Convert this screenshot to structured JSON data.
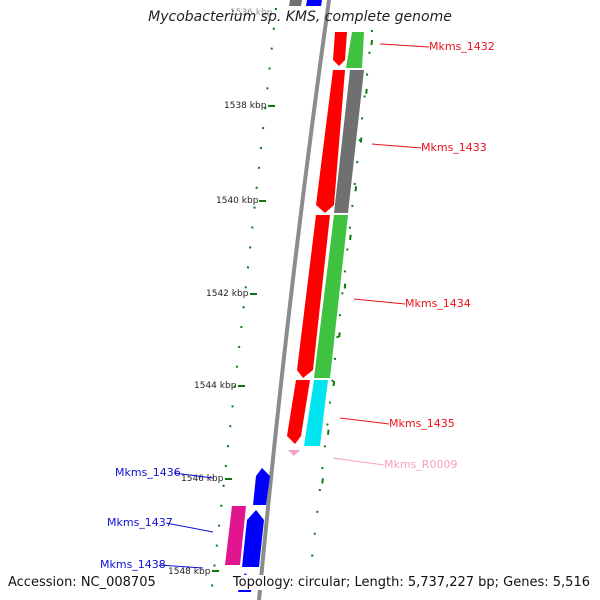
{
  "title": "Mycobacterium sp. KMS, complete genome",
  "footer": {
    "accession": "Accession: NC_008705",
    "topology": "Topology: circular; Length: 5,737,227 bp; Genes: 5,516"
  },
  "ticks": [
    {
      "label": "1536 kbp"
    },
    {
      "label": "1538 kbp"
    },
    {
      "label": "1540 kbp"
    },
    {
      "label": "1542 kbp"
    },
    {
      "label": "1544 kbp"
    },
    {
      "label": "1546 kbp"
    },
    {
      "label": "1548 kbp"
    }
  ],
  "genes": [
    {
      "name": "Mkms_1432",
      "color": "#e8111a"
    },
    {
      "name": "Mkms_1433",
      "color": "#e8111a"
    },
    {
      "name": "Mkms_1434",
      "color": "#e8111a"
    },
    {
      "name": "Mkms_1435",
      "color": "#e8111a"
    },
    {
      "name": "Mkms_R0009",
      "color": "#f5a0c8"
    },
    {
      "name": "Mkms_1436",
      "color": "#1010d0"
    },
    {
      "name": "Mkms_1437",
      "color": "#1010d0"
    },
    {
      "name": "Mkms_1438",
      "color": "#1010d0"
    }
  ],
  "colors": {
    "backbone": "#8c8c8c",
    "forward_cds": "#ff0000",
    "reverse_cds": "#0000ff",
    "cog_green": "#3fc23f",
    "cog_gray": "#707070",
    "cog_cyan": "#00e5f0",
    "cog_magenta": "#e0158f",
    "trna": "#f5a0c8",
    "tick": "#0b7a0b"
  }
}
